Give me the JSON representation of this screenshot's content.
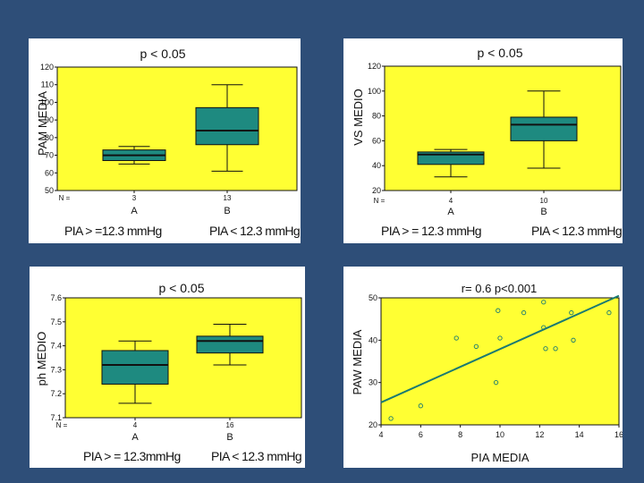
{
  "colors": {
    "background": "#2e4e78",
    "plot_fill": "#ffff33",
    "box_fill": "#1e8a80",
    "line": "#111111",
    "regression": "#1a7a72"
  },
  "chart_data": [
    {
      "type": "boxplot",
      "title": "p < 0.05",
      "ylabel": "PAM MEDIA",
      "ylim": [
        50,
        120
      ],
      "yticks": [
        50,
        60,
        70,
        80,
        90,
        100,
        110,
        120
      ],
      "n_label": "N =",
      "groups": [
        {
          "label": "A",
          "n": "3",
          "whisker_low": 65,
          "q1": 67,
          "median": 70,
          "q3": 73,
          "whisker_high": 75
        },
        {
          "label": "B",
          "n": "13",
          "whisker_low": 61,
          "q1": 76,
          "median": 84,
          "q3": 97,
          "whisker_high": 110
        }
      ],
      "captions": [
        "PIA > =12.3 mmHg",
        "PIA < 12.3 mmHg"
      ]
    },
    {
      "type": "boxplot",
      "title": "p < 0.05",
      "ylabel": "VS MEDIO",
      "ylim": [
        20,
        120
      ],
      "yticks": [
        20,
        40,
        60,
        80,
        100,
        120
      ],
      "n_label": "N =",
      "groups": [
        {
          "label": "A",
          "n": "4",
          "whisker_low": 31,
          "q1": 41,
          "median": 49,
          "q3": 51,
          "whisker_high": 53
        },
        {
          "label": "B",
          "n": "10",
          "whisker_low": 38,
          "q1": 60,
          "median": 73,
          "q3": 79,
          "whisker_high": 100
        }
      ],
      "captions": [
        "PIA > = 12.3 mmHg",
        "PIA < 12.3 mmHg"
      ]
    },
    {
      "type": "boxplot",
      "title": "p < 0.05",
      "ylabel": "ph MEDIO",
      "ylim": [
        7.1,
        7.6
      ],
      "yticks": [
        "7.1",
        "7.2",
        "7.3",
        "7.4",
        "7.5",
        "7.6"
      ],
      "n_label": "N =",
      "groups": [
        {
          "label": "A",
          "n": "4",
          "whisker_low": 7.16,
          "q1": 7.24,
          "median": 7.32,
          "q3": 7.38,
          "whisker_high": 7.42
        },
        {
          "label": "B",
          "n": "16",
          "whisker_low": 7.32,
          "q1": 7.37,
          "median": 7.42,
          "q3": 7.44,
          "whisker_high": 7.49
        }
      ],
      "captions": [
        "PIA > = 12.3mmHg",
        "PIA < 12.3 mmHg"
      ]
    },
    {
      "type": "scatter",
      "title": "r= 0.6  p<0.001",
      "xlabel": "PIA MEDIA",
      "ylabel": "PAW MEDIA",
      "xlim": [
        4,
        16
      ],
      "ylim": [
        20,
        50
      ],
      "xticks": [
        4,
        6,
        8,
        10,
        12,
        14,
        16
      ],
      "yticks": [
        20,
        30,
        40,
        50
      ],
      "x": [
        4.5,
        6.0,
        7.8,
        8.8,
        9.8,
        9.9,
        10.0,
        11.2,
        12.2,
        12.2,
        12.3,
        12.8,
        13.6,
        13.7,
        15.5
      ],
      "y": [
        21.5,
        24.5,
        40.5,
        38.5,
        30.0,
        47.0,
        40.5,
        46.5,
        49.0,
        43.0,
        38.0,
        38.0,
        46.5,
        40.0,
        46.5
      ],
      "regression": {
        "x": [
          4,
          16
        ],
        "y": [
          25.3,
          50.5
        ]
      }
    }
  ]
}
